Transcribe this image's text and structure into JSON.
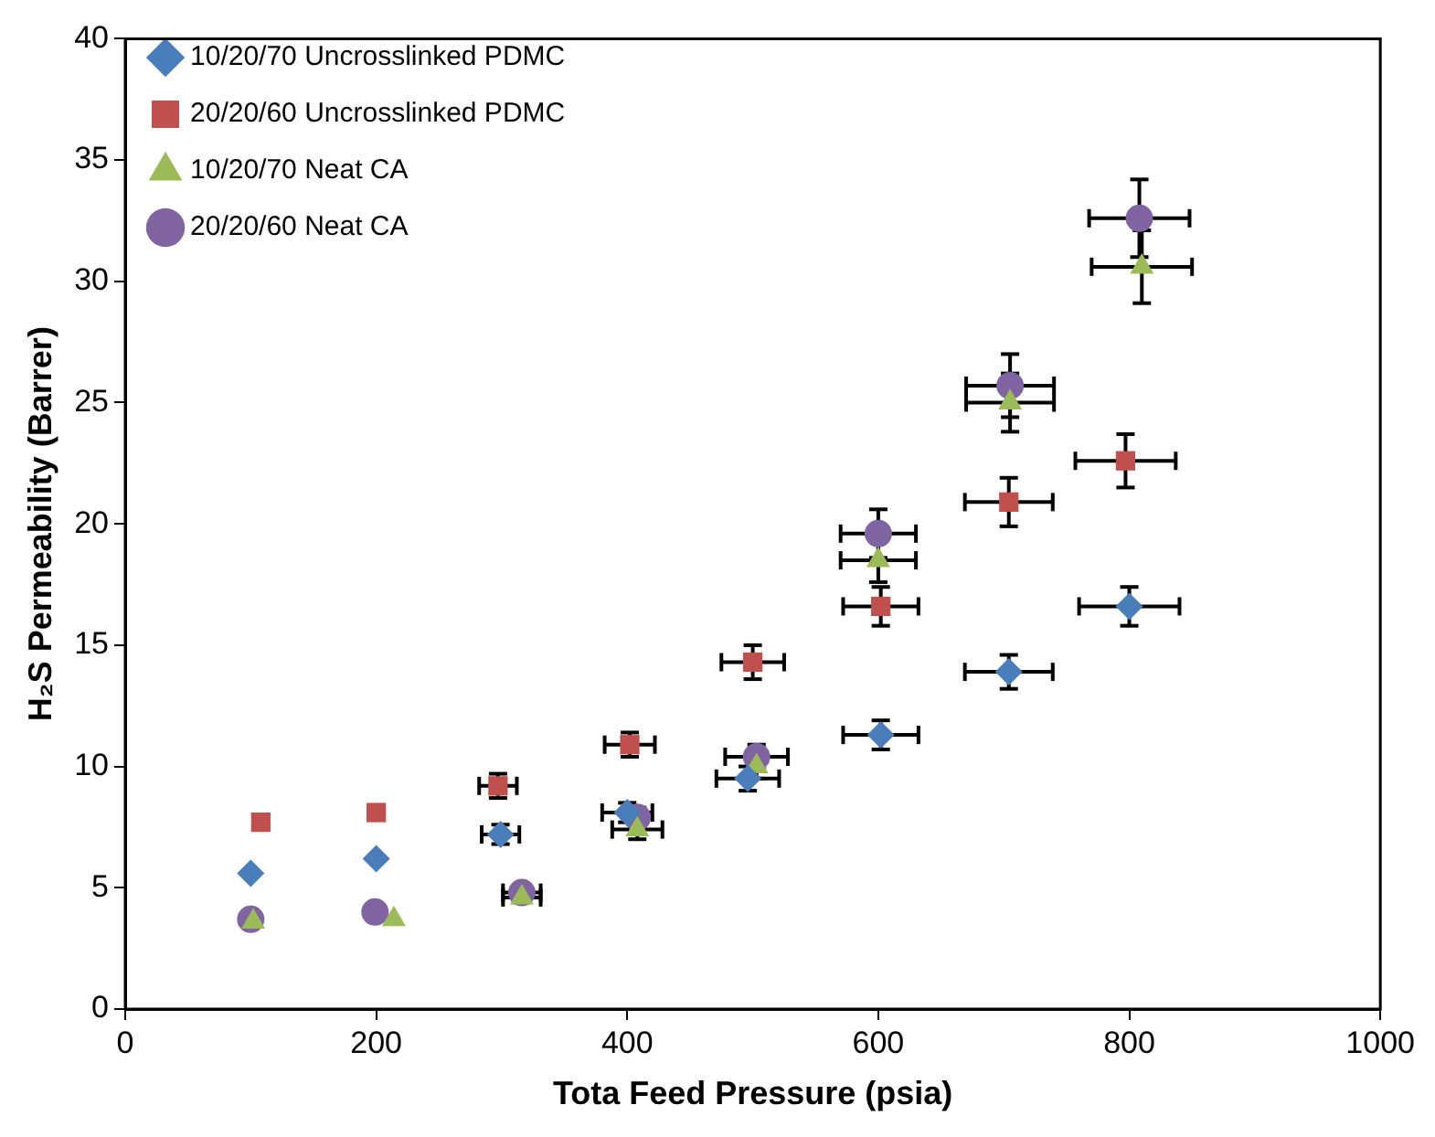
{
  "chart_data": {
    "type": "scatter",
    "xlabel": "Tota Feed Pressure (psia)",
    "ylabel": "H₂S Permeability (Barrer)",
    "xlim": [
      0,
      1000
    ],
    "xticks": [
      0,
      200,
      400,
      600,
      800,
      1000
    ],
    "ylim": [
      0,
      40
    ],
    "yticks": [
      0,
      5,
      10,
      15,
      20,
      25,
      30,
      35,
      40
    ],
    "grid": false,
    "legend": "top left",
    "series": [
      {
        "name": "10/20/70 Uncrosslinked PDMC",
        "color": "#4a7ebb",
        "marker": "diamond",
        "x": [
          100,
          200,
          299,
          400,
          496,
          602,
          704,
          800
        ],
        "values": [
          5.6,
          6.2,
          7.2,
          8.1,
          9.5,
          11.3,
          13.9,
          16.6
        ],
        "errors": [
          null,
          null,
          0.4,
          0.4,
          0.5,
          0.6,
          0.7,
          0.8
        ],
        "xerrors": [
          null,
          null,
          15,
          20,
          25,
          30,
          35,
          40
        ]
      },
      {
        "name": "20/20/60 Uncrosslinked PDMC",
        "color": "#c0504d",
        "marker": "square",
        "x": [
          108,
          200,
          297,
          402,
          500,
          602,
          704,
          797
        ],
        "values": [
          7.7,
          8.1,
          9.2,
          10.9,
          14.3,
          16.6,
          20.9,
          22.6
        ],
        "errors": [
          null,
          null,
          0.5,
          0.5,
          0.7,
          0.8,
          1.0,
          1.1
        ],
        "xerrors": [
          null,
          null,
          15,
          20,
          25,
          30,
          35,
          40
        ]
      },
      {
        "name": "10/20/70 Neat CA",
        "color": "#9bbb59",
        "marker": "triangle",
        "x": [
          102,
          214,
          316,
          408,
          503,
          600,
          705,
          810
        ],
        "values": [
          3.6,
          3.7,
          4.6,
          7.4,
          10.0,
          18.5,
          25.0,
          30.6
        ],
        "errors": [
          null,
          null,
          0.2,
          0.4,
          0.5,
          0.9,
          1.2,
          1.5
        ],
        "xerrors": [
          null,
          null,
          15,
          20,
          null,
          30,
          35,
          40
        ]
      },
      {
        "name": "20/20/60 Neat CA",
        "color": "#8064a2",
        "marker": "circle",
        "x": [
          100,
          199,
          316,
          408,
          503,
          600,
          705,
          808
        ],
        "values": [
          3.7,
          4.0,
          4.8,
          7.9,
          10.4,
          19.6,
          25.7,
          32.6
        ],
        "errors": [
          null,
          null,
          0.2,
          0.4,
          0.5,
          1.0,
          1.3,
          1.6
        ],
        "xerrors": [
          null,
          null,
          15,
          null,
          25,
          30,
          35,
          40
        ]
      }
    ]
  }
}
